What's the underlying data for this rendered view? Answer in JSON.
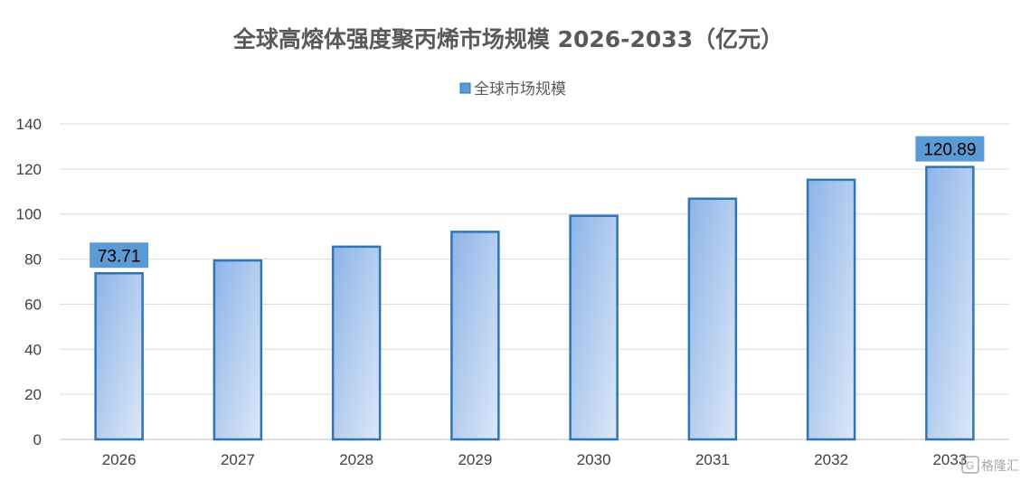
{
  "chart_data": {
    "type": "bar",
    "title": "全球高熔体强度聚丙烯市场规模 2026-2033（亿元）",
    "categories": [
      "2026",
      "2027",
      "2028",
      "2029",
      "2030",
      "2031",
      "2032",
      "2033"
    ],
    "series": [
      {
        "name": "全球市场规模",
        "values": [
          73.71,
          79.4,
          85.5,
          92.1,
          99.2,
          106.8,
          115.2,
          120.89
        ]
      }
    ],
    "data_labels": [
      {
        "category": "2026",
        "text": "73.71"
      },
      {
        "category": "2033",
        "text": "120.89"
      }
    ],
    "yticks": [
      "0",
      "20",
      "40",
      "60",
      "80",
      "100",
      "120",
      "140"
    ],
    "ylim": [
      0,
      140
    ],
    "xlabel": "",
    "ylabel": "",
    "grid": true,
    "legend_position": "top-center"
  },
  "colors": {
    "bar_fill_start": "#8db4e8",
    "bar_fill_end": "#dce8f7",
    "bar_stroke": "#2e75b6",
    "legend_swatch": "#5b9bd5",
    "label_background": "#5b9bd5",
    "gridline": "#d9d9d9",
    "title": "#595959"
  },
  "watermark": {
    "text": "格隆汇",
    "icon": "gelonghui-logo-icon"
  }
}
